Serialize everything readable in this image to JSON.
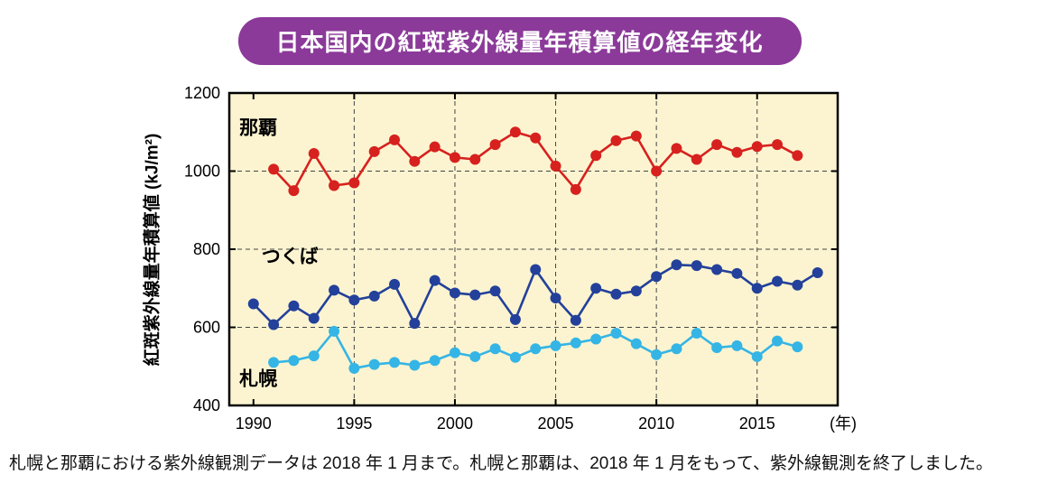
{
  "title": "日本国内の紅斑紫外線量年積算値の経年変化",
  "caption": "札幌と那覇における紫外線観測データは 2018 年 1 月まで。札幌と那覇は、2018 年 1 月をもって、紫外線観測を終了しました。",
  "colors": {
    "title_bg": "#8b3a99",
    "title_text": "#ffffff",
    "plot_bg": "#fcf4d0",
    "grid": "#444444",
    "axis": "#000000"
  },
  "chart_data": {
    "type": "line",
    "title": "日本国内の紅斑紫外線量年積算値の経年変化",
    "ylabel": "紅斑紫外線量年積算値 (kJ/m²)",
    "xlabel_unit": "(年)",
    "ylim": [
      400,
      1200
    ],
    "xlim": [
      1988.8,
      2019.0
    ],
    "yticks": [
      400,
      600,
      800,
      1000,
      1200
    ],
    "xticks": [
      1990,
      1995,
      2000,
      2005,
      2010,
      2015
    ],
    "grid_y": [
      600,
      800,
      1000
    ],
    "grid_x": [
      1995,
      2000,
      2005,
      2010,
      2015
    ],
    "grid_on": true,
    "legend_position": "inline-labels",
    "series": [
      {
        "id": "naha",
        "name": "那覇",
        "color": "#d7211e",
        "start_year": 1991,
        "label_x": 1989.3,
        "label_y": 1095,
        "values": [
          1005,
          950,
          1045,
          963,
          970,
          1050,
          1080,
          1025,
          1062,
          1035,
          1030,
          1068,
          1100,
          1085,
          1013,
          953,
          1040,
          1078,
          1090,
          1000,
          1058,
          1030,
          1068,
          1048,
          1063,
          1068,
          1040
        ]
      },
      {
        "id": "tsukuba",
        "name": "つくば",
        "color": "#23409a",
        "start_year": 1990,
        "label_x": 1990.4,
        "label_y": 765,
        "values": [
          660,
          607,
          655,
          623,
          695,
          670,
          680,
          710,
          610,
          720,
          688,
          683,
          693,
          620,
          748,
          675,
          618,
          700,
          685,
          693,
          730,
          760,
          758,
          748,
          738,
          700,
          718,
          708,
          740
        ]
      },
      {
        "id": "sapporo",
        "name": "札幌",
        "color": "#35b5e5",
        "start_year": 1991,
        "label_x": 1989.3,
        "label_y": 452,
        "values": [
          510,
          515,
          527,
          590,
          495,
          505,
          510,
          503,
          515,
          535,
          525,
          545,
          523,
          545,
          553,
          560,
          570,
          585,
          558,
          530,
          545,
          585,
          548,
          553,
          525,
          565,
          550
        ]
      }
    ]
  }
}
